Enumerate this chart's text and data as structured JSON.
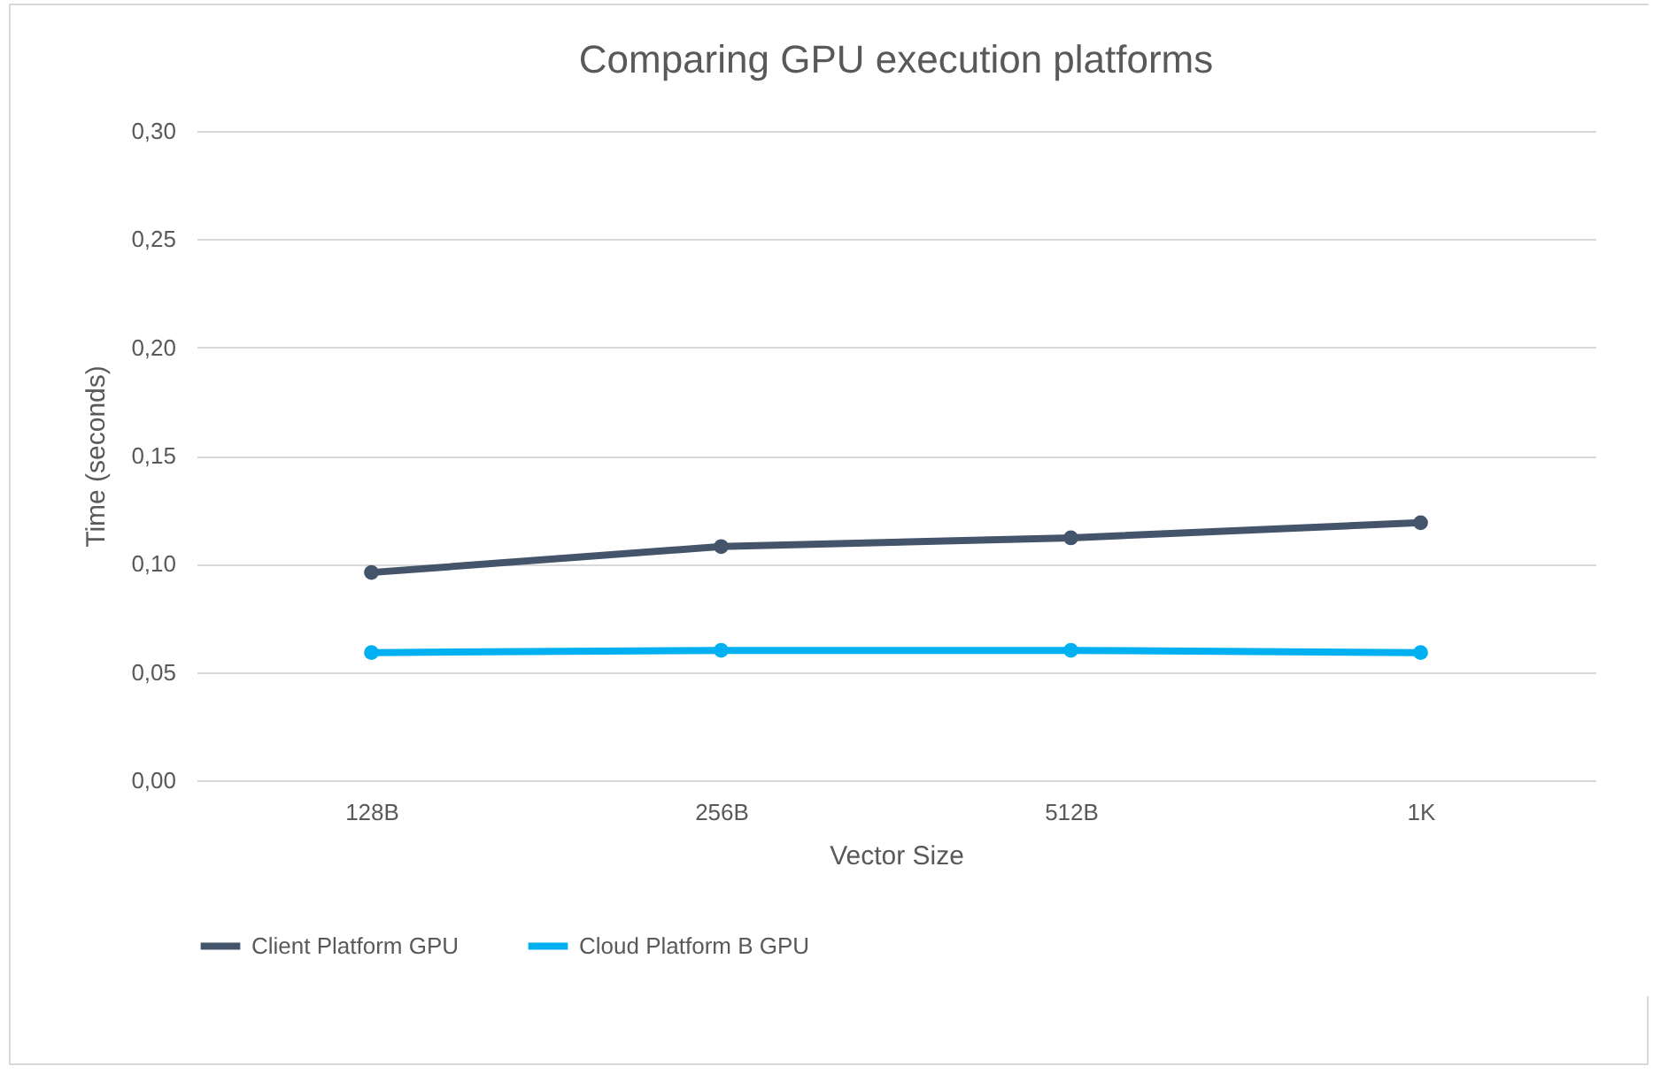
{
  "chart_data": {
    "type": "line",
    "title": "Comparing GPU execution platforms",
    "xlabel": "Vector Size",
    "ylabel": "Time (seconds)",
    "categories": [
      "128B",
      "256B",
      "512B",
      "1K"
    ],
    "series": [
      {
        "name": "Client Platform GPU",
        "color": "#44546a",
        "values": [
          0.096,
          0.108,
          0.112,
          0.119
        ]
      },
      {
        "name": "Cloud Platform B GPU",
        "color": "#00b0f0",
        "values": [
          0.059,
          0.06,
          0.06,
          0.059
        ]
      }
    ],
    "ylim": [
      0,
      0.3
    ],
    "yticks": [
      {
        "value": 0,
        "label": "0,00"
      },
      {
        "value": 0.05,
        "label": "0,05"
      },
      {
        "value": 0.1,
        "label": "0,10"
      },
      {
        "value": 0.15,
        "label": "0,15"
      },
      {
        "value": 0.2,
        "label": "0,20"
      },
      {
        "value": 0.25,
        "label": "0,25"
      },
      {
        "value": 0.3,
        "label": "0,30"
      }
    ],
    "grid": "y",
    "legend": "bottom",
    "marker": "circle",
    "line_style": "solid"
  }
}
